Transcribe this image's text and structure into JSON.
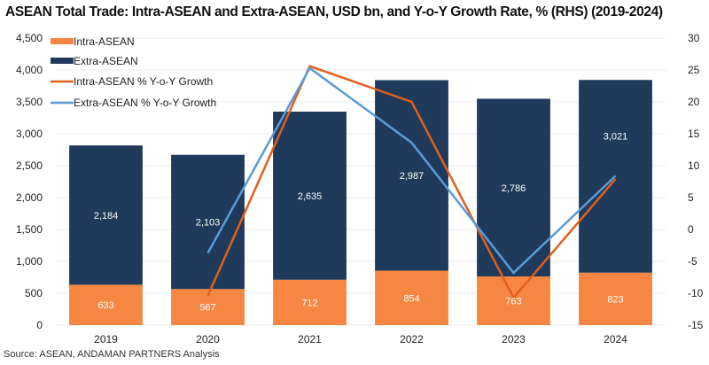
{
  "chart_data": {
    "type": "bar",
    "subtype": "stacked-bar-with-lines",
    "title": "ASEAN Total Trade: Intra-ASEAN and Extra-ASEAN, USD bn, and Y-o-Y Growth Rate, % (RHS) (2019-2024)",
    "source": "Source: ASEAN, ANDAMAN PARTNERS Analysis",
    "categories": [
      "2019",
      "2020",
      "2021",
      "2022",
      "2023",
      "2024"
    ],
    "series": [
      {
        "name": "Intra-ASEAN",
        "type": "bar",
        "axis": "left",
        "color": "#F58742",
        "values": [
          633,
          567,
          712,
          854,
          763,
          823
        ],
        "labels": [
          "633",
          "567",
          "712",
          "854",
          "763",
          "823"
        ]
      },
      {
        "name": "Extra-ASEAN",
        "type": "bar",
        "axis": "left",
        "color": "#1F3A5A",
        "values": [
          2184,
          2103,
          2635,
          2987,
          2786,
          3021
        ],
        "labels": [
          "2,184",
          "2,103",
          "2,635",
          "2,987",
          "2,786",
          "3,021"
        ]
      },
      {
        "name": "Intra-ASEAN % Y-o-Y Growth",
        "type": "line",
        "axis": "right",
        "color": "#E0601C",
        "values": [
          null,
          -10.4,
          25.6,
          20.0,
          -10.7,
          7.9
        ]
      },
      {
        "name": "Extra-ASEAN % Y-o-Y Growth",
        "type": "line",
        "axis": "right",
        "color": "#5B9BD5",
        "values": [
          null,
          -3.7,
          25.3,
          13.6,
          -6.8,
          8.4
        ]
      }
    ],
    "left_axis": {
      "min": 0,
      "max": 4500,
      "step": 500,
      "tick_labels": [
        "0",
        "500",
        "1,000",
        "1,500",
        "2,000",
        "2,500",
        "3,000",
        "3,500",
        "4,000",
        "4,500"
      ]
    },
    "right_axis": {
      "min": -15,
      "max": 30,
      "step": 5,
      "tick_labels": [
        "-15",
        "-10",
        "-5",
        "0",
        "5",
        "10",
        "15",
        "20",
        "25",
        "30"
      ]
    },
    "xlabel": "",
    "ylabel": "",
    "grid": true,
    "legend": {
      "position": "top-left",
      "entries": [
        "Intra-ASEAN",
        "Extra-ASEAN",
        "Intra-ASEAN % Y-o-Y Growth",
        "Extra-ASEAN % Y-o-Y Growth"
      ]
    }
  }
}
